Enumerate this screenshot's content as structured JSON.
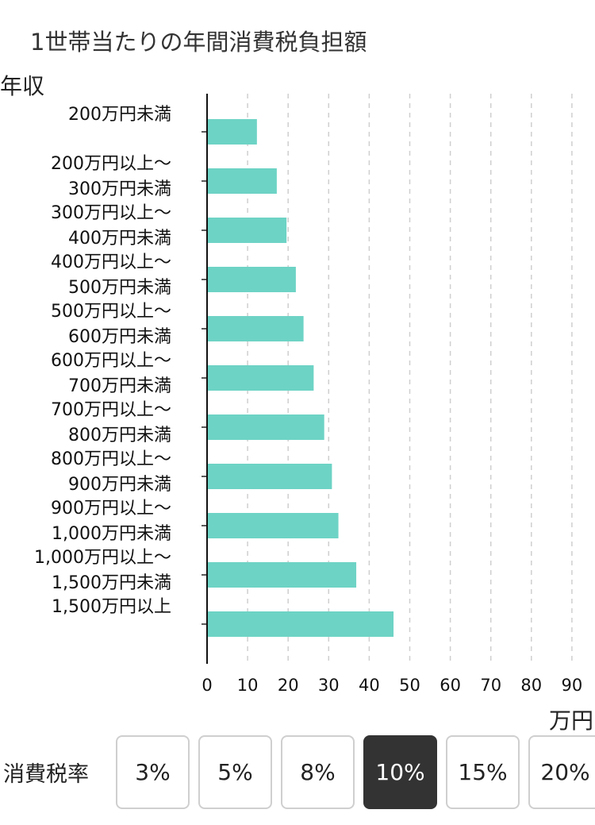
{
  "title": "1世帯当たりの年間消費税負担額",
  "y_axis_title": "年収",
  "x_unit": "万円",
  "rate": {
    "label": "消費税率",
    "options": [
      "3%",
      "5%",
      "8%",
      "10%",
      "15%",
      "20%"
    ],
    "selected": "10%"
  },
  "colors": {
    "bar": "#6dd3c5",
    "selected_button": "#333333"
  },
  "chart_data": {
    "type": "bar",
    "orientation": "horizontal",
    "categories": [
      [
        "200万円未満"
      ],
      [
        "200万円以上～",
        "300万円未満"
      ],
      [
        "300万円以上～",
        "400万円未満"
      ],
      [
        "400万円以上～",
        "500万円未満"
      ],
      [
        "500万円以上～",
        "600万円未満"
      ],
      [
        "600万円以上～",
        "700万円未満"
      ],
      [
        "700万円以上～",
        "800万円未満"
      ],
      [
        "800万円以上～",
        "900万円未満"
      ],
      [
        "900万円以上～",
        "1,000万円未満"
      ],
      [
        "1,000万円以上～",
        "1,500万円未満"
      ],
      [
        "1,500万円以上"
      ]
    ],
    "values": [
      12.3,
      17.2,
      19.6,
      21.9,
      23.8,
      26.3,
      28.9,
      30.8,
      32.4,
      36.8,
      46.0
    ],
    "xlim": [
      0,
      90
    ],
    "xticks": [
      "0",
      "10",
      "20",
      "30",
      "40",
      "50",
      "60",
      "70",
      "80",
      "90"
    ],
    "grid": true,
    "grid_style": "dashed"
  }
}
